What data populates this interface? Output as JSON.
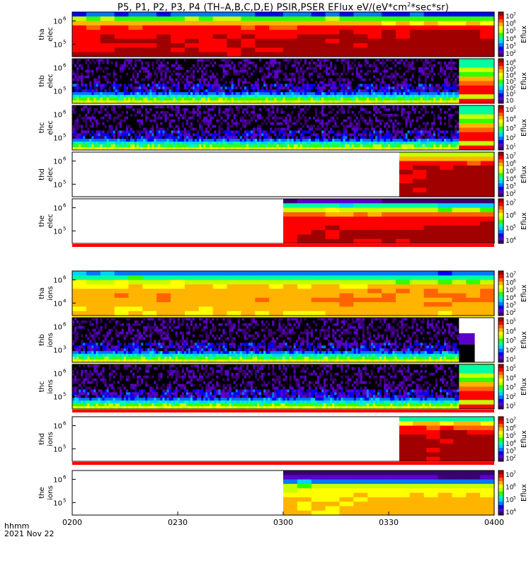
{
  "title": "P5, P1, P2, P3, P4 (TH–A,B,C,D,E) PSIR,PSER EFlux eV/(eV*cm",
  "title_sup": "2",
  "title_tail": "*sec*sr)",
  "footer": {
    "line1": "hhmm",
    "line2": "2021 Nov 22"
  },
  "chart_data": {
    "type": "heatmap",
    "x_axis": {
      "ticks": [
        "0200",
        "0230",
        "0300",
        "0330",
        "0400"
      ],
      "range": [
        "02:00",
        "04:00"
      ]
    },
    "colormap": [
      "#3a006e",
      "#5a00c8",
      "#0000ff",
      "#0078ff",
      "#00d2ff",
      "#00ffa0",
      "#32ff00",
      "#c8ff00",
      "#ffff00",
      "#ffb400",
      "#ff6400",
      "#ff0000",
      "#a00000"
    ],
    "panels": [
      {
        "label1": "tha",
        "label2": "elec",
        "yticks": [
          "10",
          "10"
        ],
        "yexp": [
          "6",
          "5"
        ],
        "cb_ticks": [
          "10",
          "10",
          "10",
          "10",
          "10",
          "10"
        ],
        "cb_exp": [
          "7",
          "6",
          "5",
          "4",
          "3",
          "2"
        ],
        "cb_label": "Eflux",
        "data_start_min": 0,
        "data_end_min": 120,
        "pattern": "steady",
        "layers": [
          0.25,
          0.55,
          0.75,
          0.85,
          0.88,
          0.9,
          0.92,
          0.92,
          0.92,
          0.92
        ]
      },
      {
        "label1": "thb",
        "label2": "elec",
        "yticks": [
          "10",
          "10"
        ],
        "yexp": [
          "6",
          "5"
        ],
        "cb_ticks": [
          "10",
          "10",
          "10",
          "10",
          "10",
          "10",
          "10"
        ],
        "cb_exp": [
          "6",
          "5",
          "4",
          "3",
          "2",
          "1",
          ""
        ],
        "cb_label": "Eflux",
        "data_start_min": 0,
        "data_end_min": 110,
        "pattern": "noise",
        "tail": "mixed"
      },
      {
        "label1": "thc",
        "label2": "elec",
        "yticks": [
          "10",
          "10"
        ],
        "yexp": [
          "6",
          "5"
        ],
        "cb_ticks": [
          "10",
          "10",
          "10",
          "10",
          "10"
        ],
        "cb_exp": [
          "5",
          "4",
          "3",
          "2",
          "1"
        ],
        "cb_label": "Eflux",
        "data_start_min": 0,
        "data_end_min": 110,
        "pattern": "noise",
        "tail": "mixed"
      },
      {
        "label1": "thd",
        "label2": "elec",
        "yticks": [
          "10",
          "10"
        ],
        "yexp": [
          "6",
          "5"
        ],
        "cb_ticks": [
          "10",
          "10",
          "10",
          "10",
          "10",
          "10"
        ],
        "cb_exp": [
          "7",
          "6",
          "5",
          "4",
          "3",
          "2"
        ],
        "cb_label": "Eflux",
        "data_start_min": 93,
        "data_end_min": 120,
        "pattern": "steady",
        "layers": [
          0.6,
          0.75,
          0.88,
          0.92,
          0.93,
          0.93,
          0.93,
          0.93,
          0.93,
          0.93
        ]
      },
      {
        "label1": "the",
        "label2": "elec",
        "yticks": [
          "10",
          "10"
        ],
        "yexp": [
          "6",
          "5"
        ],
        "cb_ticks": [
          "10",
          "10",
          "10",
          "10"
        ],
        "cb_exp": [
          "7",
          "6",
          "5",
          "4"
        ],
        "cb_label": "Eflux",
        "data_start_min": 60,
        "data_end_min": 120,
        "pattern": "steady",
        "bottom_strip": "red",
        "layers": [
          0.1,
          0.4,
          0.6,
          0.78,
          0.85,
          0.88,
          0.9,
          0.92,
          0.92,
          0.92
        ]
      },
      {
        "label1": "tha",
        "label2": "ions",
        "yticks": [
          "10",
          "10"
        ],
        "yexp": [
          "6",
          "4"
        ],
        "cb_ticks": [
          "10",
          "10",
          "10",
          "10",
          "10",
          "10"
        ],
        "cb_exp": [
          "7",
          "6",
          "5",
          "4",
          "3",
          "2"
        ],
        "cb_label": "Eflux",
        "data_start_min": 0,
        "data_end_min": 120,
        "pattern": "steady",
        "bottom_strip": "yellow",
        "layers": [
          0.3,
          0.45,
          0.6,
          0.68,
          0.72,
          0.74,
          0.74,
          0.72,
          0.7,
          0.68
        ]
      },
      {
        "label1": "thb",
        "label2": "ions",
        "yticks": [
          "10",
          "10"
        ],
        "yexp": [
          "6",
          "3"
        ],
        "cb_ticks": [
          "10",
          "10",
          "10",
          "10",
          "10"
        ],
        "cb_exp": [
          "5",
          "4",
          "3",
          "2",
          "1"
        ],
        "cb_label": "Eflux",
        "data_start_min": 0,
        "data_end_min": 110,
        "pattern": "noise",
        "tail": "dark",
        "bottom_strip": "yellow"
      },
      {
        "label1": "thc",
        "label2": "ions",
        "yticks": [
          "10",
          "10"
        ],
        "yexp": [
          "6",
          "5"
        ],
        "cb_ticks": [
          "10",
          "10",
          "10",
          "10",
          "10"
        ],
        "cb_exp": [
          "5",
          "4",
          "3",
          "2",
          "1"
        ],
        "cb_label": "Eflux",
        "data_start_min": 0,
        "data_end_min": 110,
        "pattern": "noise",
        "tail": "mixed",
        "bottom_strip": "red"
      },
      {
        "label1": "thd",
        "label2": "ions",
        "yticks": [
          "10",
          "10"
        ],
        "yexp": [
          "6",
          "5"
        ],
        "cb_ticks": [
          "10",
          "10",
          "10",
          "10",
          "10",
          "10"
        ],
        "cb_exp": [
          "7",
          "6",
          "5",
          "4",
          "3",
          "2"
        ],
        "cb_label": "Eflux",
        "data_start_min": 93,
        "data_end_min": 120,
        "pattern": "steady",
        "bottom_strip": "red",
        "layers": [
          0.45,
          0.7,
          0.85,
          0.9,
          0.93,
          0.93,
          0.93,
          0.93,
          0.93,
          0.93
        ]
      },
      {
        "label1": "the",
        "label2": "ions",
        "yticks": [
          "10",
          "10"
        ],
        "yexp": [
          "6",
          "5"
        ],
        "cb_ticks": [
          "10",
          "10",
          "10",
          "10"
        ],
        "cb_exp": [
          "7",
          "6",
          "5",
          "4"
        ],
        "cb_label": "Eflux",
        "data_start_min": 60,
        "data_end_min": 120,
        "pattern": "steady",
        "layers": [
          0.02,
          0.12,
          0.3,
          0.55,
          0.62,
          0.66,
          0.68,
          0.7,
          0.7,
          0.7
        ]
      }
    ]
  }
}
